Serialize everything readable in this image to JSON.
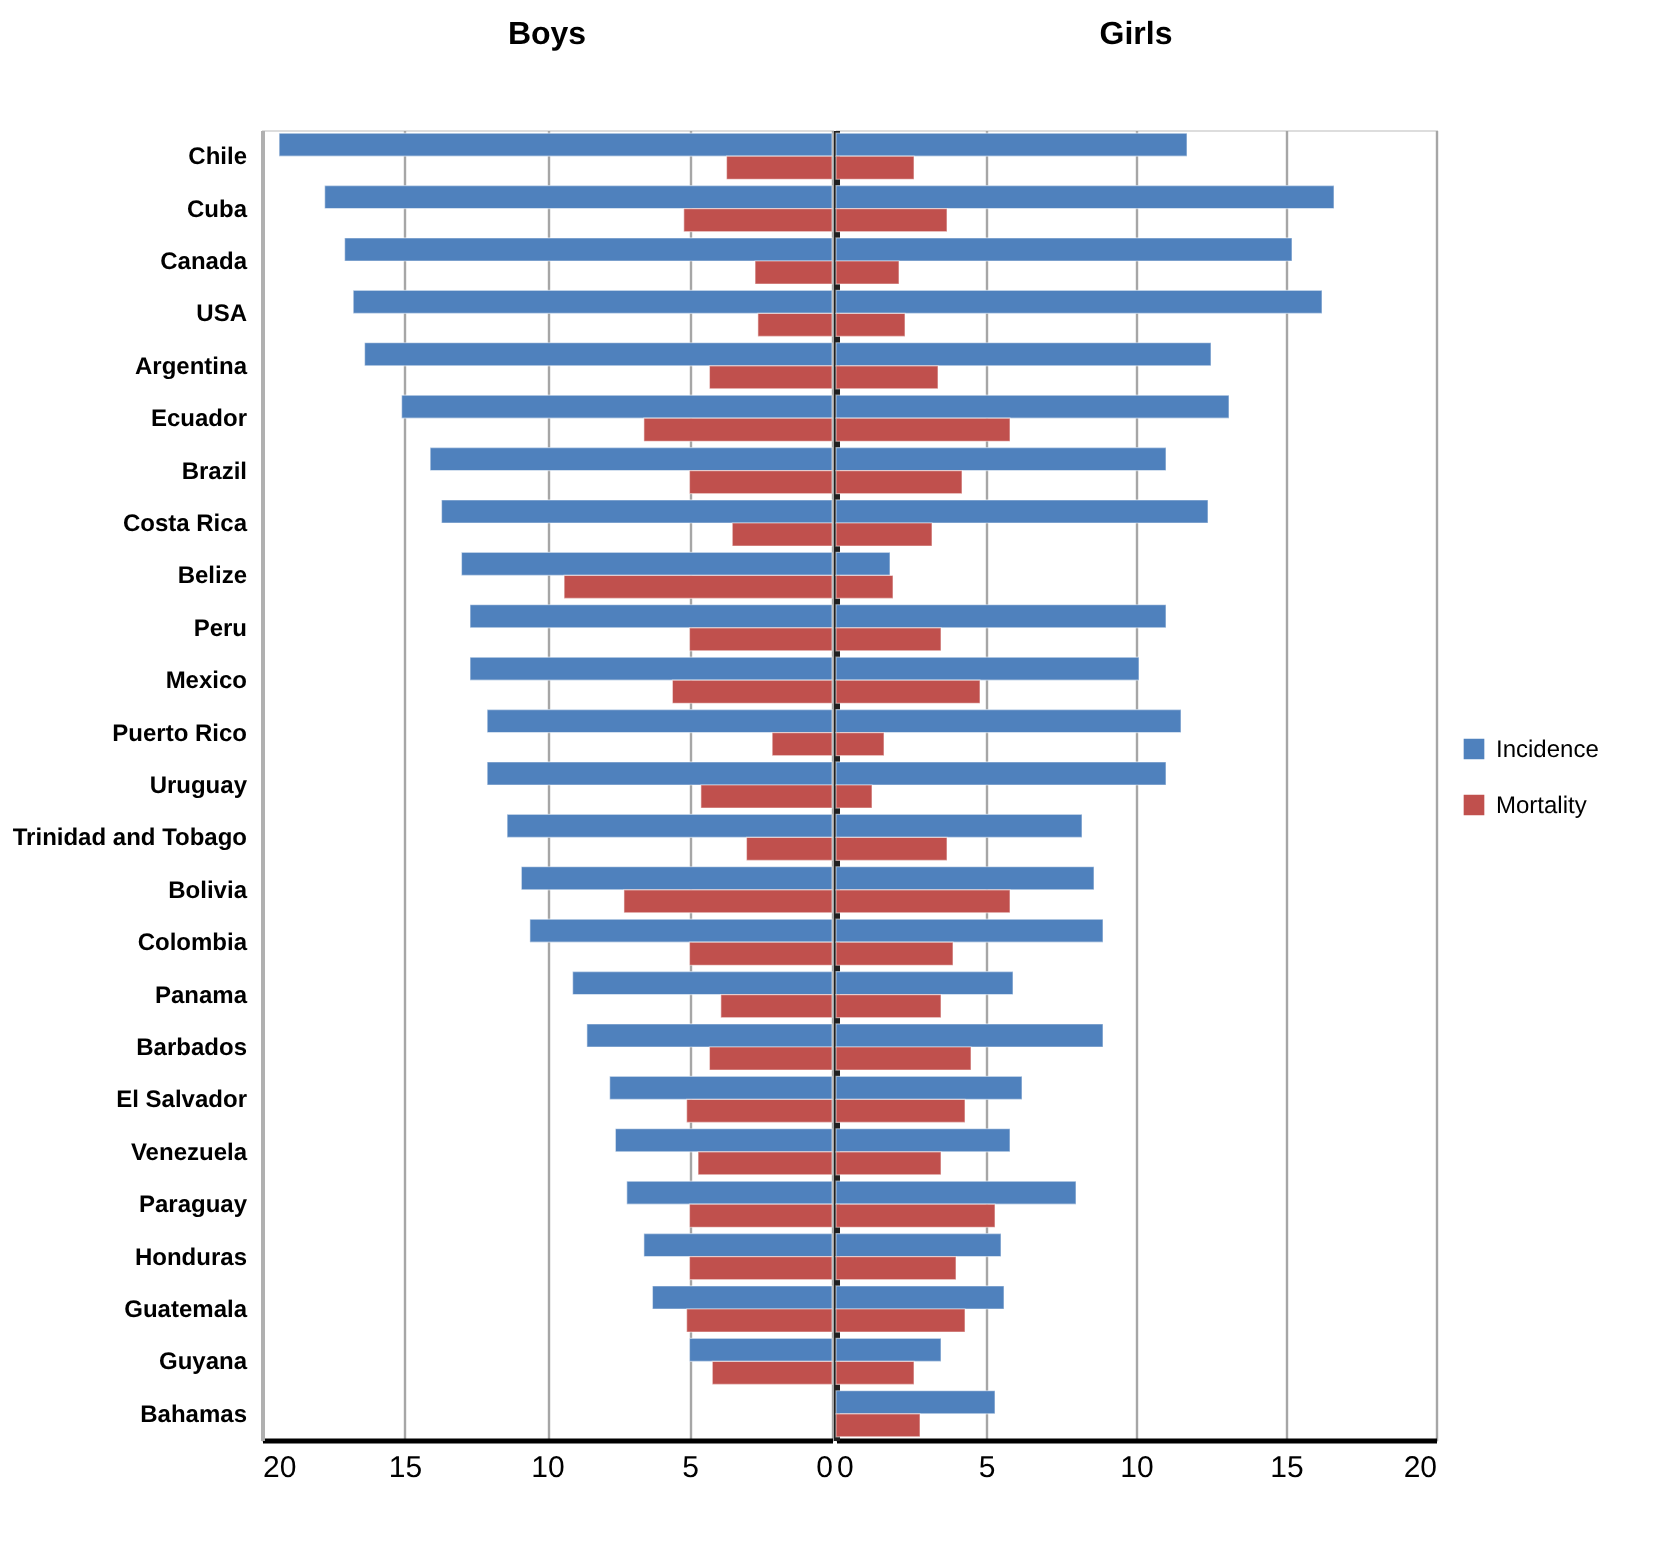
{
  "chart_data": [
    {
      "type": "bar",
      "orientation": "horizontal",
      "title": "Boys",
      "categories": [
        "Chile",
        "Cuba",
        "Canada",
        "USA",
        "Argentina",
        "Ecuador",
        "Brazil",
        "Costa Rica",
        "Belize",
        "Peru",
        "Mexico",
        "Puerto Rico",
        "Uruguay",
        "Trinidad and Tobago",
        "Bolivia",
        "Colombia",
        "Panama",
        "Barbados",
        "El Salvador",
        "Venezuela",
        "Paraguay",
        "Honduras",
        "Guatemala",
        "Guyana",
        "Bahamas"
      ],
      "series": [
        {
          "name": "Incidence",
          "color": "#4f81bd",
          "values": [
            19.4,
            17.8,
            17.1,
            16.8,
            16.4,
            15.1,
            14.1,
            13.7,
            13.0,
            12.7,
            12.7,
            12.1,
            12.1,
            11.4,
            10.9,
            10.6,
            9.1,
            8.6,
            7.8,
            7.6,
            7.2,
            6.6,
            6.3,
            5.0,
            null
          ]
        },
        {
          "name": "Mortality",
          "color": "#c0504d",
          "values": [
            3.7,
            5.2,
            2.7,
            2.6,
            4.3,
            6.6,
            5.0,
            3.5,
            9.4,
            5.0,
            5.6,
            2.1,
            4.6,
            3.0,
            7.3,
            5.0,
            3.9,
            4.3,
            5.1,
            4.7,
            5.0,
            5.0,
            5.1,
            4.2,
            null
          ]
        }
      ],
      "xlim": [
        20,
        0
      ],
      "xticks": [
        20,
        15,
        10,
        5,
        0
      ],
      "grid": "x",
      "legend": "right"
    },
    {
      "type": "bar",
      "orientation": "horizontal",
      "title": "Girls",
      "categories": [
        null,
        null,
        null,
        null,
        null,
        null,
        null,
        null,
        null,
        null,
        null,
        null,
        null,
        null,
        null,
        null,
        null,
        null,
        null,
        null,
        null,
        null,
        null,
        null,
        null
      ],
      "series": [
        {
          "name": "Incidence",
          "color": "#4f81bd",
          "values": [
            11.7,
            16.6,
            15.2,
            16.2,
            12.5,
            13.1,
            11.0,
            12.4,
            1.8,
            11.0,
            10.1,
            11.5,
            11.0,
            8.2,
            8.6,
            8.9,
            5.9,
            8.9,
            6.2,
            5.8,
            8.0,
            5.5,
            5.6,
            3.5,
            5.3
          ]
        },
        {
          "name": "Mortality",
          "color": "#c0504d",
          "values": [
            2.6,
            3.7,
            2.1,
            2.3,
            3.4,
            5.8,
            4.2,
            3.2,
            1.9,
            3.5,
            4.8,
            1.6,
            1.2,
            3.7,
            5.8,
            3.9,
            3.5,
            4.5,
            4.3,
            3.5,
            5.3,
            4.0,
            4.3,
            2.6,
            2.8
          ]
        }
      ],
      "xlim": [
        0,
        20
      ],
      "xticks": [
        0,
        5,
        10,
        15,
        20
      ],
      "grid": "x",
      "legend": "right",
      "tick_labels": "x"
    }
  ]
}
